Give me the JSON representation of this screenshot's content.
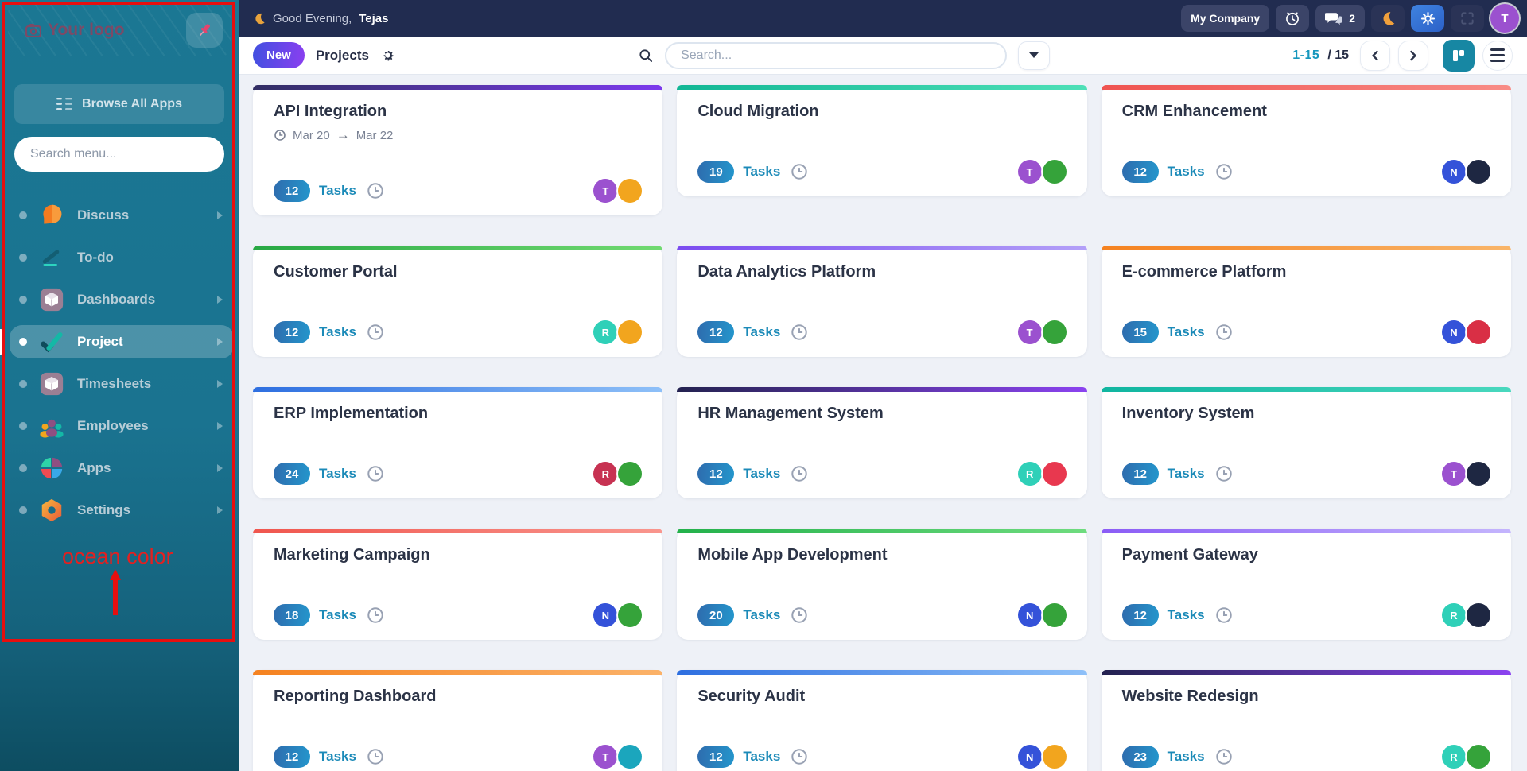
{
  "annotation": {
    "label": "ocean color",
    "color": "#e32020"
  },
  "sidebar": {
    "logo_text": "Your logo",
    "browse_label": "Browse All Apps",
    "search_placeholder": "Search menu...",
    "items": [
      {
        "label": "Discuss",
        "icon": "discuss-icon",
        "active": false,
        "has_submenu": true
      },
      {
        "label": "To-do",
        "icon": "todo-icon",
        "active": false,
        "has_submenu": false
      },
      {
        "label": "Dashboards",
        "icon": "dashboards-icon",
        "active": false,
        "has_submenu": true
      },
      {
        "label": "Project",
        "icon": "project-icon",
        "active": true,
        "has_submenu": true
      },
      {
        "label": "Timesheets",
        "icon": "timesheets-icon",
        "active": false,
        "has_submenu": true
      },
      {
        "label": "Employees",
        "icon": "employees-icon",
        "active": false,
        "has_submenu": true
      },
      {
        "label": "Apps",
        "icon": "apps-icon",
        "active": false,
        "has_submenu": true
      },
      {
        "label": "Settings",
        "icon": "settings-icon",
        "active": false,
        "has_submenu": true
      }
    ]
  },
  "header": {
    "greeting": "Good Evening,",
    "user_name": "Tejas",
    "company_button": "My Company",
    "chat_count": "2",
    "avatar_initial": "T"
  },
  "toolbar": {
    "new_button": "New",
    "view_title": "Projects",
    "search_placeholder": "Search...",
    "page_range": "1-15",
    "page_total": "/ 15"
  },
  "cards": {
    "tasks_label": "Tasks",
    "items": [
      {
        "name": "API Integration",
        "tasks": "12",
        "date_start": "Mar 20",
        "date_end": "Mar 22",
        "accent_from": "#312e63",
        "accent_to": "#7c3aed",
        "avatars": [
          {
            "initial": "T",
            "color": "#9b51cf"
          },
          {
            "initial": "",
            "color": "#f2a51e"
          }
        ]
      },
      {
        "name": "Cloud Migration",
        "tasks": "19",
        "accent_from": "#12b795",
        "accent_to": "#4ee0b7",
        "avatars": [
          {
            "initial": "T",
            "color": "#9b51cf"
          },
          {
            "initial": "",
            "color": "#35a33a"
          }
        ]
      },
      {
        "name": "CRM Enhancement",
        "tasks": "12",
        "accent_from": "#ef5350",
        "accent_to": "#f88c86",
        "avatars": [
          {
            "initial": "N",
            "color": "#3452d9"
          },
          {
            "initial": "",
            "color": "#1e2742"
          }
        ]
      },
      {
        "name": "Customer Portal",
        "tasks": "12",
        "accent_from": "#27a844",
        "accent_to": "#71da71",
        "avatars": [
          {
            "initial": "R",
            "color": "#2fd0b8"
          },
          {
            "initial": "",
            "color": "#f2a51e"
          }
        ]
      },
      {
        "name": "Data Analytics Platform",
        "tasks": "12",
        "accent_from": "#7b4cf0",
        "accent_to": "#b3a0f8",
        "avatars": [
          {
            "initial": "T",
            "color": "#9b51cf"
          },
          {
            "initial": "",
            "color": "#35a33a"
          }
        ]
      },
      {
        "name": "E-commerce Platform",
        "tasks": "15",
        "accent_from": "#f58220",
        "accent_to": "#f9b569",
        "avatars": [
          {
            "initial": "N",
            "color": "#3452d9"
          },
          {
            "initial": "",
            "color": "#d92f45"
          }
        ]
      },
      {
        "name": "ERP Implementation",
        "tasks": "24",
        "accent_from": "#2e6fe0",
        "accent_to": "#8ec0f8",
        "avatars": [
          {
            "initial": "R",
            "color": "#c73252"
          },
          {
            "initial": "",
            "color": "#35a33a"
          }
        ]
      },
      {
        "name": "HR Management System",
        "tasks": "12",
        "accent_from": "#232250",
        "accent_to": "#8b43f0",
        "avatars": [
          {
            "initial": "R",
            "color": "#2fd0b8"
          },
          {
            "initial": "",
            "color": "#e8384f"
          }
        ]
      },
      {
        "name": "Inventory System",
        "tasks": "12",
        "accent_from": "#10b5a0",
        "accent_to": "#49d8be",
        "avatars": [
          {
            "initial": "T",
            "color": "#9b51cf"
          },
          {
            "initial": "",
            "color": "#1e2742"
          }
        ]
      },
      {
        "name": "Marketing Campaign",
        "tasks": "18",
        "accent_from": "#f0564e",
        "accent_to": "#f9968e",
        "avatars": [
          {
            "initial": "N",
            "color": "#3452d9"
          },
          {
            "initial": "",
            "color": "#35a33a"
          }
        ]
      },
      {
        "name": "Mobile App Development",
        "tasks": "20",
        "accent_from": "#23b14b",
        "accent_to": "#6fdc7f",
        "avatars": [
          {
            "initial": "N",
            "color": "#3452d9"
          },
          {
            "initial": "",
            "color": "#35a33a"
          }
        ]
      },
      {
        "name": "Payment Gateway",
        "tasks": "12",
        "accent_from": "#8b5cf6",
        "accent_to": "#c4b5fd",
        "avatars": [
          {
            "initial": "R",
            "color": "#2fd0b8"
          },
          {
            "initial": "",
            "color": "#1e2742"
          }
        ]
      },
      {
        "name": "Reporting Dashboard",
        "tasks": "12",
        "accent_from": "#f58220",
        "accent_to": "#fbb269",
        "avatars": [
          {
            "initial": "T",
            "color": "#9b51cf"
          },
          {
            "initial": "",
            "color": "#1ba6bd"
          }
        ]
      },
      {
        "name": "Security Audit",
        "tasks": "12",
        "accent_from": "#2e6fe0",
        "accent_to": "#8ec0f8",
        "avatars": [
          {
            "initial": "N",
            "color": "#3452d9"
          },
          {
            "initial": "",
            "color": "#f2a51e"
          }
        ]
      },
      {
        "name": "Website Redesign",
        "tasks": "23",
        "accent_from": "#232250",
        "accent_to": "#8b43f0",
        "avatars": [
          {
            "initial": "R",
            "color": "#2fd0b8"
          },
          {
            "initial": "",
            "color": "#35a33a"
          }
        ]
      }
    ]
  }
}
